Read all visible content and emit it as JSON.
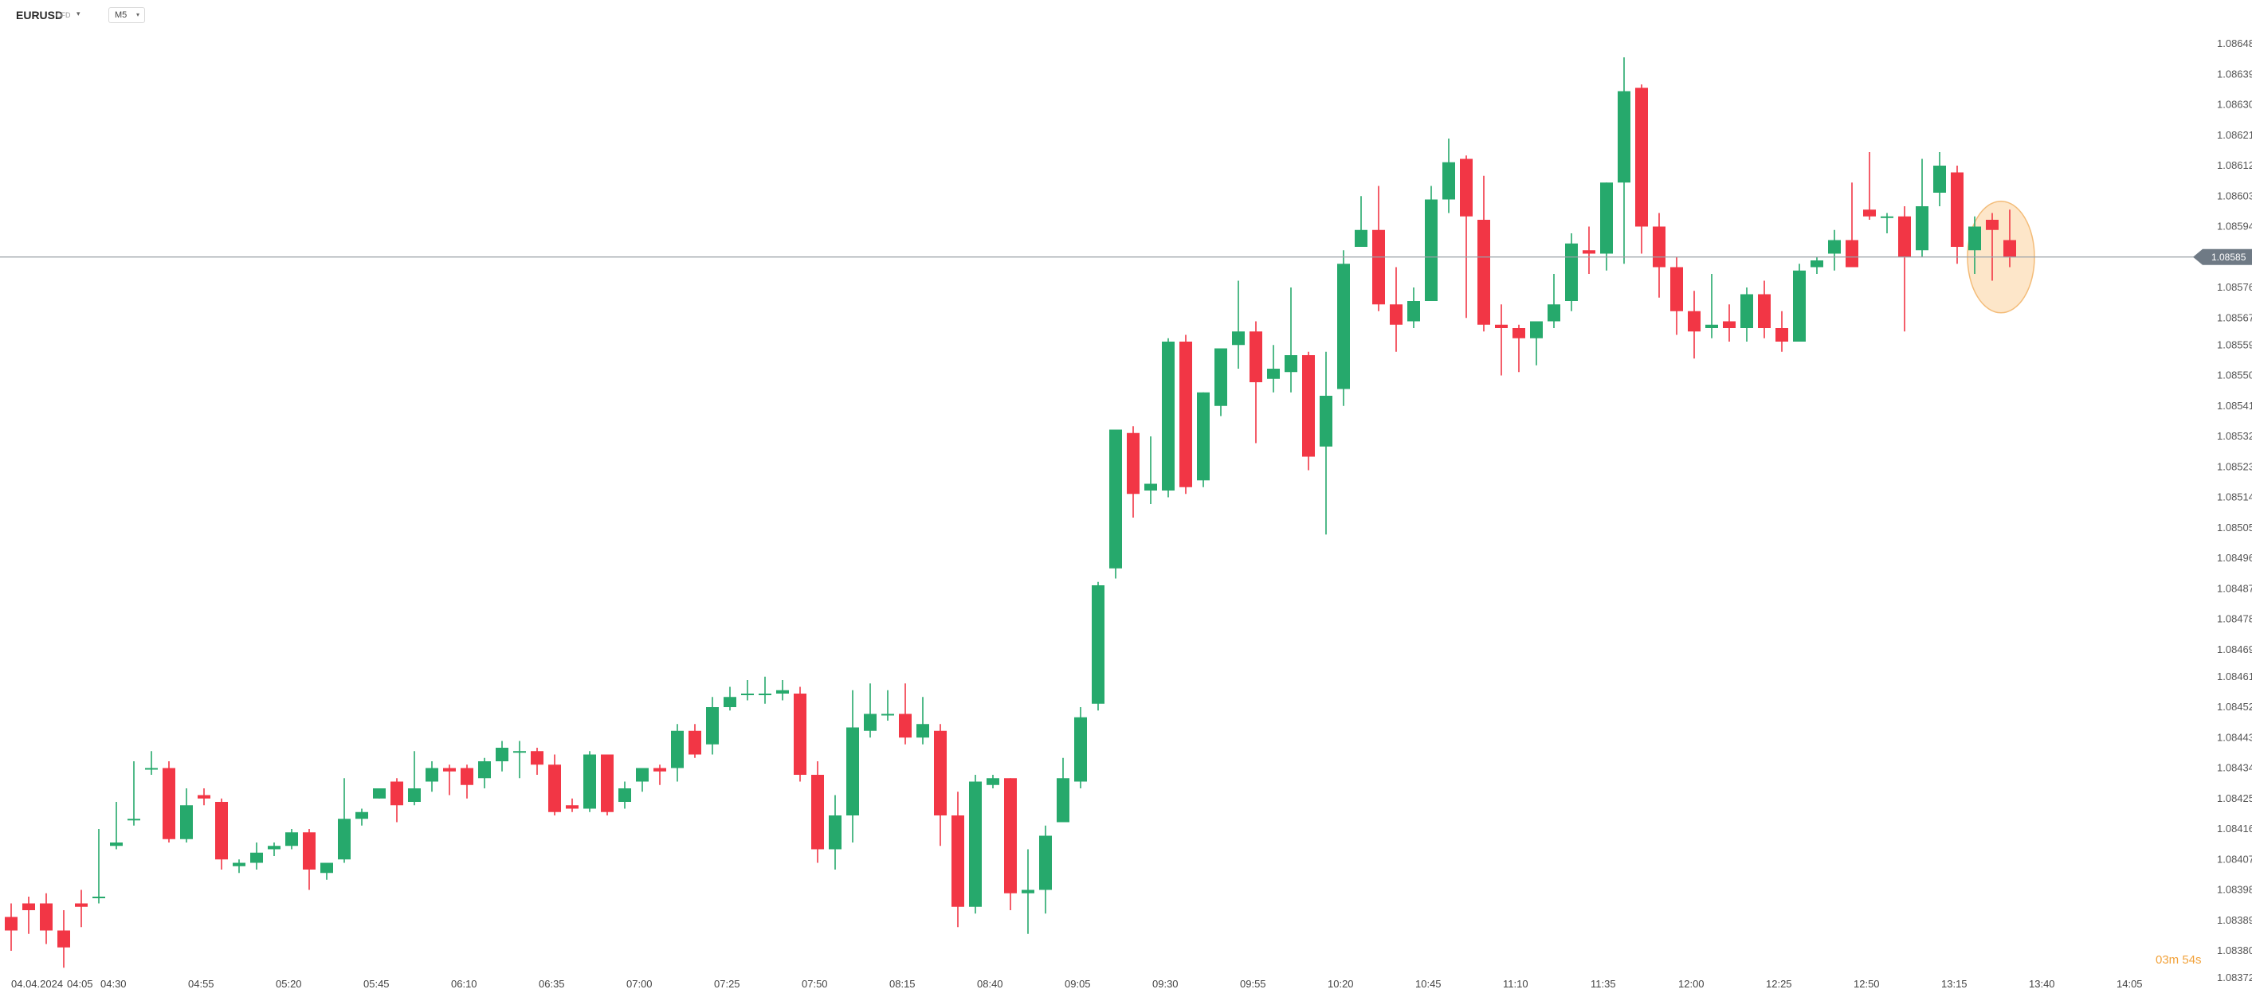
{
  "header": {
    "symbol": "EURUSD",
    "instrument_type": "CFD",
    "timeframe": "M5"
  },
  "countdown": "03m 54s",
  "colors": {
    "bull": "#26a96c",
    "bear": "#f23645",
    "highlight_fill": "#fde4c4",
    "highlight_stroke": "#f2b56b",
    "countdown": "#f2a23a",
    "current_price_badge": "#6f7a85"
  },
  "chart_data": {
    "type": "candlestick",
    "symbol": "EURUSD",
    "timeframe": "M5",
    "y_axis": {
      "ylim": [
        1.08372,
        1.08648
      ],
      "ticks": [
        "1.08648",
        "1.08639",
        "1.08630",
        "1.08621",
        "1.08612",
        "1.08603",
        "1.08594",
        "1.08585",
        "1.08576",
        "1.08567",
        "1.08559",
        "1.08550",
        "1.08541",
        "1.08532",
        "1.08523",
        "1.08514",
        "1.08505",
        "1.08496",
        "1.08487",
        "1.08478",
        "1.08469",
        "1.08461",
        "1.08452",
        "1.08443",
        "1.08434",
        "1.08425",
        "1.08416",
        "1.08407",
        "1.08398",
        "1.08389",
        "1.08380",
        "1.08372"
      ]
    },
    "x_axis": {
      "ticks": [
        "04.04.2024",
        "04:05",
        "04:30",
        "04:55",
        "05:20",
        "05:45",
        "06:10",
        "06:35",
        "07:00",
        "07:25",
        "07:50",
        "08:15",
        "08:40",
        "09:05",
        "09:30",
        "09:55",
        "10:20",
        "10:45",
        "11:10",
        "11:35",
        "12:00",
        "12:25",
        "12:50",
        "13:15",
        "13:40",
        "14:05"
      ]
    },
    "current_price": "1.08585",
    "candles": [
      [
        1.0839,
        1.08394,
        1.08386,
        1.0838
      ],
      [
        1.08394,
        1.08396,
        1.08392,
        1.08385
      ],
      [
        1.08394,
        1.08397,
        1.08386,
        1.08382
      ],
      [
        1.08386,
        1.08392,
        1.08381,
        1.08375
      ],
      [
        1.08394,
        1.08398,
        1.08393,
        1.08387
      ],
      [
        1.08396,
        1.08416,
        1.08396,
        1.08394
      ],
      [
        1.08411,
        1.08424,
        1.08412,
        1.0841
      ],
      [
        1.08419,
        1.08436,
        1.08419,
        1.08417
      ],
      [
        1.08434,
        1.08439,
        1.08434,
        1.08432
      ],
      [
        1.08434,
        1.08436,
        1.08413,
        1.08412
      ],
      [
        1.08413,
        1.08428,
        1.08423,
        1.08412
      ],
      [
        1.08426,
        1.08428,
        1.08425,
        1.08423
      ],
      [
        1.08424,
        1.08425,
        1.08407,
        1.08404
      ],
      [
        1.08405,
        1.08407,
        1.08406,
        1.08403
      ],
      [
        1.08406,
        1.08412,
        1.08409,
        1.08404
      ],
      [
        1.0841,
        1.08412,
        1.08411,
        1.08408
      ],
      [
        1.08411,
        1.08416,
        1.08415,
        1.0841
      ],
      [
        1.08415,
        1.08416,
        1.08404,
        1.08398
      ],
      [
        1.08403,
        1.08406,
        1.08406,
        1.08401
      ],
      [
        1.08407,
        1.08431,
        1.08419,
        1.08406
      ],
      [
        1.08419,
        1.08422,
        1.08421,
        1.08417
      ],
      [
        1.08425,
        1.08428,
        1.08428,
        1.08425
      ],
      [
        1.0843,
        1.08431,
        1.08423,
        1.08418
      ],
      [
        1.08424,
        1.08439,
        1.08428,
        1.08423
      ],
      [
        1.0843,
        1.08436,
        1.08434,
        1.08427
      ],
      [
        1.08434,
        1.08435,
        1.08433,
        1.08426
      ],
      [
        1.08434,
        1.08435,
        1.08429,
        1.08425
      ],
      [
        1.08431,
        1.08437,
        1.08436,
        1.08428
      ],
      [
        1.08436,
        1.08442,
        1.0844,
        1.08433
      ],
      [
        1.08439,
        1.08442,
        1.08439,
        1.08431
      ],
      [
        1.08439,
        1.0844,
        1.08435,
        1.08432
      ],
      [
        1.08435,
        1.08438,
        1.08421,
        1.0842
      ],
      [
        1.08423,
        1.08425,
        1.08422,
        1.08421
      ],
      [
        1.08422,
        1.08439,
        1.08438,
        1.08421
      ],
      [
        1.08438,
        1.08438,
        1.08421,
        1.0842
      ],
      [
        1.08424,
        1.0843,
        1.08428,
        1.08422
      ],
      [
        1.0843,
        1.08434,
        1.08434,
        1.08427
      ],
      [
        1.08434,
        1.08435,
        1.08433,
        1.08429
      ],
      [
        1.08434,
        1.08447,
        1.08445,
        1.0843
      ],
      [
        1.08445,
        1.08447,
        1.08438,
        1.08437
      ],
      [
        1.08441,
        1.08455,
        1.08452,
        1.08438
      ],
      [
        1.08452,
        1.08458,
        1.08455,
        1.08451
      ],
      [
        1.08456,
        1.0846,
        1.08456,
        1.08454
      ],
      [
        1.08456,
        1.08461,
        1.08456,
        1.08453
      ],
      [
        1.08456,
        1.0846,
        1.08457,
        1.08454
      ],
      [
        1.08456,
        1.08458,
        1.08432,
        1.0843
      ],
      [
        1.08432,
        1.08436,
        1.0841,
        1.08406
      ],
      [
        1.0841,
        1.08426,
        1.0842,
        1.08404
      ],
      [
        1.0842,
        1.08457,
        1.08446,
        1.08412
      ],
      [
        1.08445,
        1.08459,
        1.0845,
        1.08443
      ],
      [
        1.0845,
        1.08457,
        1.0845,
        1.08448
      ],
      [
        1.0845,
        1.08459,
        1.08443,
        1.08441
      ],
      [
        1.08443,
        1.08455,
        1.08447,
        1.08441
      ],
      [
        1.08445,
        1.08447,
        1.0842,
        1.08411
      ],
      [
        1.0842,
        1.08427,
        1.08393,
        1.08387
      ],
      [
        1.08393,
        1.08432,
        1.0843,
        1.08391
      ],
      [
        1.08429,
        1.08432,
        1.08431,
        1.08428
      ],
      [
        1.08431,
        1.08431,
        1.08397,
        1.08392
      ],
      [
        1.08397,
        1.0841,
        1.08398,
        1.08385
      ],
      [
        1.08398,
        1.08417,
        1.08414,
        1.08391
      ],
      [
        1.08418,
        1.08437,
        1.08431,
        1.08418
      ],
      [
        1.0843,
        1.08452,
        1.08449,
        1.08428
      ],
      [
        1.08453,
        1.08489,
        1.08488,
        1.08451
      ],
      [
        1.08493,
        1.08534,
        1.08534,
        1.0849
      ],
      [
        1.08533,
        1.08535,
        1.08515,
        1.08508
      ],
      [
        1.08516,
        1.08532,
        1.08518,
        1.08512
      ],
      [
        1.08516,
        1.08561,
        1.0856,
        1.08514
      ],
      [
        1.0856,
        1.08562,
        1.08517,
        1.08515
      ],
      [
        1.08519,
        1.08545,
        1.08545,
        1.08517
      ],
      [
        1.08541,
        1.08556,
        1.08558,
        1.08538
      ],
      [
        1.08559,
        1.08578,
        1.08563,
        1.08552
      ],
      [
        1.08563,
        1.08566,
        1.08548,
        1.0853
      ],
      [
        1.08549,
        1.08559,
        1.08552,
        1.08545
      ],
      [
        1.08551,
        1.08576,
        1.08556,
        1.08545
      ],
      [
        1.08556,
        1.08557,
        1.08526,
        1.08522
      ],
      [
        1.08529,
        1.08557,
        1.08544,
        1.08503
      ],
      [
        1.08546,
        1.08587,
        1.08583,
        1.08541
      ],
      [
        1.08588,
        1.08603,
        1.08593,
        1.08588
      ],
      [
        1.08593,
        1.08606,
        1.08571,
        1.08569
      ],
      [
        1.08571,
        1.08582,
        1.08565,
        1.08557
      ],
      [
        1.08566,
        1.08576,
        1.08572,
        1.08564
      ],
      [
        1.08572,
        1.08606,
        1.08602,
        1.08572
      ],
      [
        1.08602,
        1.0862,
        1.08613,
        1.08598
      ],
      [
        1.08614,
        1.08615,
        1.08597,
        1.08567
      ],
      [
        1.08596,
        1.08609,
        1.08565,
        1.08563
      ],
      [
        1.08565,
        1.08571,
        1.08564,
        1.0855
      ],
      [
        1.08564,
        1.08565,
        1.08561,
        1.08551
      ],
      [
        1.08561,
        1.08565,
        1.08566,
        1.08553
      ],
      [
        1.08566,
        1.0858,
        1.08571,
        1.08564
      ],
      [
        1.08572,
        1.08592,
        1.08589,
        1.08569
      ],
      [
        1.08587,
        1.08594,
        1.08586,
        1.0858
      ],
      [
        1.08586,
        1.08599,
        1.08607,
        1.08581
      ],
      [
        1.08607,
        1.08644,
        1.08634,
        1.08583
      ],
      [
        1.08635,
        1.08636,
        1.08594,
        1.08586
      ],
      [
        1.08594,
        1.08598,
        1.08582,
        1.08573
      ],
      [
        1.08582,
        1.08585,
        1.08569,
        1.08562
      ],
      [
        1.08569,
        1.08575,
        1.08563,
        1.08555
      ],
      [
        1.08564,
        1.0858,
        1.08565,
        1.08561
      ],
      [
        1.08566,
        1.08571,
        1.08564,
        1.0856
      ],
      [
        1.08564,
        1.08576,
        1.08574,
        1.0856
      ],
      [
        1.08574,
        1.08578,
        1.08564,
        1.08561
      ],
      [
        1.08564,
        1.08569,
        1.0856,
        1.08557
      ],
      [
        1.0856,
        1.08583,
        1.08581,
        1.0856
      ],
      [
        1.08582,
        1.08585,
        1.08584,
        1.0858
      ],
      [
        1.08586,
        1.08593,
        1.0859,
        1.08581
      ],
      [
        1.0859,
        1.08607,
        1.08582,
        1.08582
      ],
      [
        1.08599,
        1.08616,
        1.08597,
        1.08596
      ],
      [
        1.08597,
        1.08598,
        1.08597,
        1.08592
      ],
      [
        1.08597,
        1.086,
        1.08585,
        1.08563
      ],
      [
        1.08587,
        1.08614,
        1.086,
        1.08585
      ],
      [
        1.08604,
        1.08616,
        1.08612,
        1.086
      ],
      [
        1.0861,
        1.08612,
        1.08588,
        1.08583
      ],
      [
        1.08587,
        1.08597,
        1.08594,
        1.0858
      ],
      [
        1.08596,
        1.08598,
        1.08593,
        1.08578
      ],
      [
        1.0859,
        1.08599,
        1.08585,
        1.08582
      ]
    ]
  }
}
